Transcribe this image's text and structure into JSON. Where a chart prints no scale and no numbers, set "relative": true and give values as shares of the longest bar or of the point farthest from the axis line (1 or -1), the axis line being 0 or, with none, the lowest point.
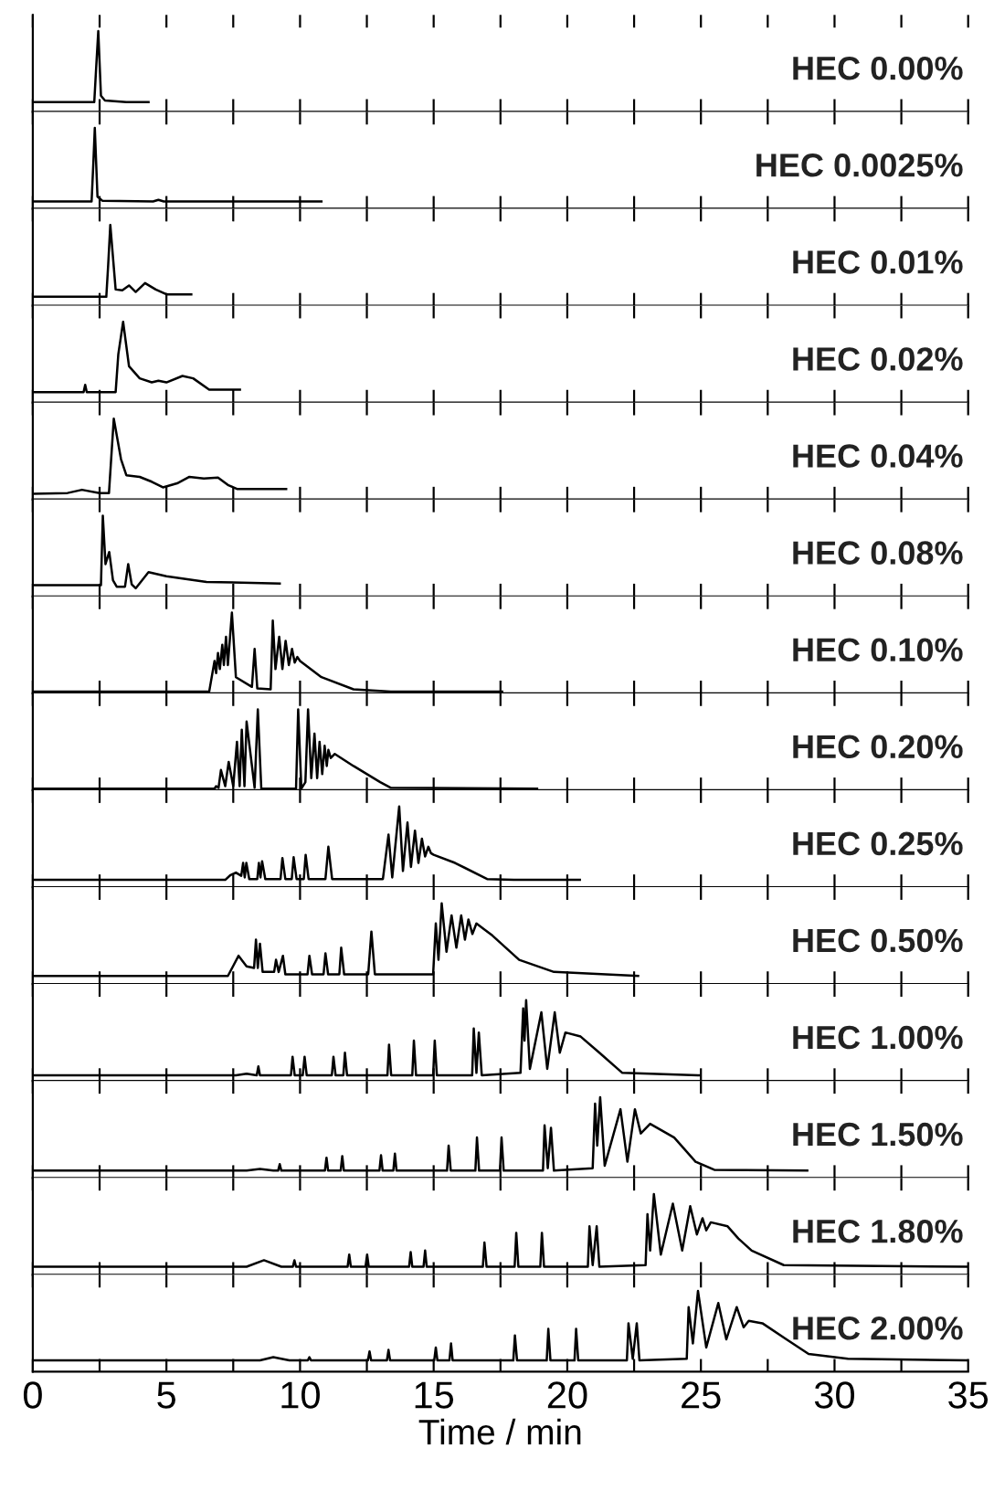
{
  "chart_data": [
    {
      "type": "line",
      "title": "HEC 0.00%",
      "relative": true,
      "color": "#000000",
      "xlim": [
        0,
        35
      ],
      "tick_labels": false,
      "x": [
        0,
        2.3,
        2.38,
        2.45,
        2.55,
        2.7,
        3.5,
        4.33
      ],
      "values": [
        0.12,
        0.12,
        0.6,
        1,
        0.2,
        0.14,
        0.12,
        0.12
      ]
    },
    {
      "type": "line",
      "title": "HEC 0.0025%",
      "relative": true,
      "color": "#000000",
      "xlim": [
        0,
        35
      ],
      "tick_labels": false,
      "x": [
        0,
        2.2,
        2.27,
        2.32,
        2.42,
        2.6,
        4.5,
        4.7,
        4.9,
        10.8
      ],
      "values": [
        0.09,
        0.09,
        0.6,
        1,
        0.15,
        0.1,
        0.09,
        0.11,
        0.09,
        0.09
      ]
    },
    {
      "type": "line",
      "title": "HEC 0.01%",
      "relative": true,
      "color": "#000000",
      "xlim": [
        0,
        35
      ],
      "tick_labels": false,
      "x": [
        0,
        2.75,
        2.82,
        2.9,
        3.1,
        3.35,
        3.6,
        3.85,
        4.2,
        4.6,
        5.0,
        5.93
      ],
      "values": [
        0.11,
        0.11,
        0.5,
        1,
        0.2,
        0.19,
        0.25,
        0.17,
        0.28,
        0.2,
        0.14,
        0.14
      ]
    },
    {
      "type": "line",
      "title": "HEC 0.02%",
      "relative": true,
      "color": "#000000",
      "xlim": [
        0,
        35
      ],
      "tick_labels": false,
      "x": [
        0,
        1.9,
        1.96,
        2.02,
        3.1,
        3.2,
        3.38,
        3.6,
        4.0,
        4.45,
        4.7,
        5.0,
        5.6,
        6.0,
        6.6,
        7.75
      ],
      "values": [
        0.13,
        0.13,
        0.22,
        0.13,
        0.13,
        0.6,
        1,
        0.45,
        0.3,
        0.25,
        0.27,
        0.25,
        0.33,
        0.3,
        0.16,
        0.16
      ]
    },
    {
      "type": "line",
      "title": "HEC 0.04%",
      "relative": true,
      "color": "#000000",
      "xlim": [
        0,
        35
      ],
      "tick_labels": false,
      "x": [
        0,
        1.3,
        1.84,
        2.5,
        2.85,
        3.03,
        3.3,
        3.5,
        4.0,
        4.45,
        4.87,
        5.4,
        5.86,
        6.4,
        6.93,
        7.3,
        7.64,
        9.48
      ],
      "values": [
        0.07,
        0.08,
        0.12,
        0.08,
        0.08,
        1,
        0.5,
        0.3,
        0.28,
        0.22,
        0.15,
        0.2,
        0.28,
        0.26,
        0.27,
        0.18,
        0.13,
        0.13
      ]
    },
    {
      "type": "line",
      "title": "HEC 0.08%",
      "relative": true,
      "color": "#000000",
      "xlim": [
        0,
        35
      ],
      "tick_labels": false,
      "x": [
        0,
        2.55,
        2.62,
        2.72,
        2.86,
        3.0,
        3.14,
        3.45,
        3.57,
        3.7,
        3.85,
        4.33,
        5.0,
        6.5,
        9.24
      ],
      "values": [
        0.14,
        0.14,
        1,
        0.4,
        0.55,
        0.2,
        0.12,
        0.12,
        0.4,
        0.15,
        0.1,
        0.3,
        0.25,
        0.18,
        0.16
      ]
    },
    {
      "type": "line",
      "title": "HEC 0.10%",
      "relative": true,
      "color": "#000000",
      "xlim": [
        0,
        35
      ],
      "tick_labels": false,
      "x": [
        0,
        6.6,
        6.8,
        6.86,
        6.93,
        7.0,
        7.09,
        7.15,
        7.23,
        7.3,
        7.45,
        7.6,
        8.2,
        8.3,
        8.4,
        8.9,
        8.98,
        9.08,
        9.22,
        9.34,
        9.46,
        9.58,
        9.7,
        9.8,
        9.9,
        10.0,
        10.8,
        12.0,
        13.4,
        17.56
      ],
      "values": [
        0.02,
        0.02,
        0.4,
        0.25,
        0.5,
        0.3,
        0.6,
        0.35,
        0.7,
        0.35,
        1,
        0.2,
        0.08,
        0.55,
        0.06,
        0.05,
        0.9,
        0.3,
        0.7,
        0.3,
        0.65,
        0.35,
        0.55,
        0.38,
        0.45,
        0.4,
        0.2,
        0.05,
        0.02,
        0.02
      ]
    },
    {
      "type": "line",
      "title": "HEC 0.20%",
      "relative": true,
      "color": "#000000",
      "xlim": [
        0,
        35
      ],
      "tick_labels": false,
      "x": [
        0,
        6.8,
        6.86,
        6.95,
        7.04,
        7.2,
        7.33,
        7.5,
        7.64,
        7.74,
        7.82,
        7.92,
        8.0,
        8.3,
        8.42,
        8.55,
        9.85,
        9.93,
        10.05,
        10.2,
        10.3,
        10.42,
        10.54,
        10.64,
        10.73,
        10.83,
        10.92,
        11.0,
        11.06,
        11.15,
        11.3,
        12.0,
        13.0,
        13.4,
        18.87
      ],
      "values": [
        0.02,
        0.02,
        0.05,
        0.03,
        0.25,
        0.05,
        0.35,
        0.05,
        0.6,
        0.05,
        0.75,
        0.05,
        0.85,
        0.03,
        1,
        0.02,
        0.02,
        1,
        0.02,
        0.1,
        1,
        0.15,
        0.7,
        0.15,
        0.6,
        0.2,
        0.55,
        0.3,
        0.5,
        0.4,
        0.45,
        0.3,
        0.1,
        0.03,
        0.02
      ]
    },
    {
      "type": "line",
      "title": "HEC 0.25%",
      "relative": true,
      "color": "#000000",
      "xlim": [
        0,
        35
      ],
      "tick_labels": false,
      "x": [
        0,
        7.2,
        7.4,
        7.6,
        7.8,
        7.87,
        7.93,
        7.99,
        8.1,
        8.4,
        8.46,
        8.52,
        8.58,
        8.7,
        9.27,
        9.34,
        9.45,
        9.69,
        9.76,
        9.87,
        10.14,
        10.21,
        10.32,
        10.95,
        11.06,
        11.2,
        13.1,
        13.31,
        13.45,
        13.71,
        13.85,
        14.02,
        14.15,
        14.3,
        14.43,
        14.56,
        14.68,
        14.8,
        14.9,
        15.0,
        15.8,
        17.0,
        18.0,
        20.47
      ],
      "values": [
        0.09,
        0.09,
        0.15,
        0.18,
        0.14,
        0.3,
        0.12,
        0.3,
        0.1,
        0.1,
        0.3,
        0.12,
        0.32,
        0.1,
        0.1,
        0.36,
        0.1,
        0.1,
        0.37,
        0.1,
        0.1,
        0.4,
        0.1,
        0.1,
        0.5,
        0.1,
        0.1,
        0.65,
        0.12,
        1,
        0.2,
        0.8,
        0.25,
        0.7,
        0.3,
        0.6,
        0.38,
        0.5,
        0.42,
        0.4,
        0.3,
        0.1,
        0.09,
        0.09
      ]
    },
    {
      "type": "line",
      "title": "HEC 0.50%",
      "relative": true,
      "color": "#000000",
      "xlim": [
        0,
        35
      ],
      "tick_labels": false,
      "x": [
        0,
        7.3,
        7.7,
        8.0,
        8.28,
        8.35,
        8.42,
        8.5,
        8.6,
        9.03,
        9.1,
        9.2,
        9.36,
        9.45,
        10.28,
        10.35,
        10.45,
        10.88,
        10.95,
        11.05,
        11.47,
        11.54,
        11.65,
        12.55,
        12.67,
        12.8,
        14.98,
        15.08,
        15.18,
        15.3,
        15.48,
        15.67,
        15.85,
        16.03,
        16.17,
        16.3,
        16.45,
        16.6,
        17.2,
        18.2,
        19.5,
        22.65
      ],
      "values": [
        0.1,
        0.1,
        0.35,
        0.22,
        0.2,
        0.55,
        0.2,
        0.5,
        0.15,
        0.15,
        0.3,
        0.15,
        0.35,
        0.12,
        0.12,
        0.35,
        0.12,
        0.12,
        0.38,
        0.12,
        0.12,
        0.45,
        0.12,
        0.12,
        0.65,
        0.12,
        0.12,
        0.75,
        0.3,
        1,
        0.4,
        0.85,
        0.45,
        0.85,
        0.55,
        0.8,
        0.62,
        0.75,
        0.6,
        0.3,
        0.15,
        0.1
      ]
    },
    {
      "type": "line",
      "title": "HEC 1.00%",
      "relative": true,
      "color": "#000000",
      "xlim": [
        0,
        35
      ],
      "tick_labels": false,
      "x": [
        0,
        7.6,
        8.0,
        8.38,
        8.44,
        8.5,
        9.66,
        9.72,
        9.8,
        10.1,
        10.17,
        10.25,
        11.19,
        11.25,
        11.33,
        11.62,
        11.68,
        11.76,
        13.27,
        13.33,
        13.41,
        14.2,
        14.26,
        14.34,
        14.98,
        15.04,
        15.12,
        16.44,
        16.5,
        16.6,
        16.69,
        16.8,
        18.25,
        18.35,
        18.4,
        18.46,
        18.6,
        19.03,
        19.25,
        19.53,
        19.72,
        19.93,
        20.5,
        21.2,
        22.06,
        24.96
      ],
      "values": [
        0.07,
        0.07,
        0.09,
        0.07,
        0.18,
        0.07,
        0.07,
        0.3,
        0.07,
        0.07,
        0.3,
        0.07,
        0.07,
        0.3,
        0.07,
        0.07,
        0.35,
        0.07,
        0.07,
        0.45,
        0.07,
        0.07,
        0.5,
        0.07,
        0.07,
        0.5,
        0.07,
        0.07,
        0.65,
        0.1,
        0.6,
        0.07,
        0.1,
        0.9,
        0.5,
        1,
        0.15,
        0.85,
        0.15,
        0.85,
        0.35,
        0.6,
        0.55,
        0.35,
        0.1,
        0.07
      ]
    },
    {
      "type": "line",
      "title": "HEC 1.50%",
      "relative": true,
      "color": "#000000",
      "xlim": [
        0,
        35
      ],
      "tick_labels": false,
      "x": [
        0,
        8.0,
        8.5,
        9.0,
        9.18,
        9.24,
        9.3,
        10.93,
        10.99,
        11.05,
        11.52,
        11.58,
        11.64,
        12.97,
        13.03,
        13.09,
        13.49,
        13.55,
        13.61,
        15.5,
        15.56,
        15.64,
        16.56,
        16.62,
        16.7,
        17.48,
        17.54,
        17.62,
        19.09,
        19.15,
        19.27,
        19.39,
        19.5,
        20.95,
        21.04,
        21.12,
        21.23,
        21.4,
        21.99,
        22.25,
        22.53,
        22.75,
        23.1,
        24.0,
        24.8,
        25.5,
        28.98
      ],
      "values": [
        0.09,
        0.09,
        0.11,
        0.09,
        0.09,
        0.17,
        0.09,
        0.09,
        0.25,
        0.09,
        0.09,
        0.27,
        0.09,
        0.09,
        0.28,
        0.09,
        0.09,
        0.3,
        0.09,
        0.09,
        0.4,
        0.09,
        0.09,
        0.5,
        0.09,
        0.09,
        0.5,
        0.09,
        0.09,
        0.65,
        0.12,
        0.62,
        0.09,
        0.12,
        0.92,
        0.4,
        1,
        0.15,
        0.85,
        0.2,
        0.85,
        0.55,
        0.67,
        0.5,
        0.2,
        0.1,
        0.09
      ]
    },
    {
      "type": "line",
      "title": "HEC 1.80%",
      "relative": true,
      "color": "#000000",
      "xlim": [
        0,
        35
      ],
      "tick_labels": false,
      "x": [
        0,
        8.0,
        8.65,
        9.3,
        9.73,
        9.79,
        9.85,
        11.78,
        11.84,
        11.9,
        12.45,
        12.51,
        12.57,
        14.08,
        14.14,
        14.2,
        14.62,
        14.68,
        14.74,
        16.84,
        16.9,
        16.98,
        18.03,
        18.09,
        18.17,
        18.99,
        19.05,
        19.13,
        20.77,
        20.83,
        20.95,
        21.1,
        21.2,
        22.93,
        23.0,
        23.1,
        23.24,
        23.5,
        23.95,
        24.3,
        24.6,
        24.85,
        25.06,
        25.2,
        25.37,
        26.0,
        26.4,
        26.9,
        28.1,
        35
      ],
      "values": [
        0.1,
        0.1,
        0.18,
        0.1,
        0.1,
        0.18,
        0.1,
        0.1,
        0.25,
        0.1,
        0.1,
        0.25,
        0.1,
        0.1,
        0.28,
        0.1,
        0.1,
        0.3,
        0.1,
        0.1,
        0.4,
        0.1,
        0.1,
        0.52,
        0.1,
        0.1,
        0.52,
        0.1,
        0.1,
        0.6,
        0.12,
        0.6,
        0.1,
        0.12,
        0.75,
        0.3,
        1,
        0.25,
        0.88,
        0.3,
        0.85,
        0.5,
        0.7,
        0.55,
        0.65,
        0.6,
        0.45,
        0.3,
        0.12,
        0.1
      ]
    },
    {
      "type": "line",
      "title": "HEC 2.00%",
      "relative": true,
      "color": "#000000",
      "xlim": [
        0,
        35
      ],
      "xticks": [
        0,
        {
          "value": 2.5,
          "label": null
        },
        5,
        {
          "value": 7.5,
          "label": null
        },
        10,
        {
          "value": 12.5,
          "label": null
        },
        15,
        {
          "value": 17.5,
          "label": null
        },
        20,
        {
          "value": 22.5,
          "label": null
        },
        25,
        {
          "value": 27.5,
          "label": null
        },
        30,
        {
          "value": 32.5,
          "label": null
        },
        35
      ],
      "tick_labels": "x",
      "xlabel": "Time / min",
      "x": [
        0,
        8.5,
        9.0,
        9.6,
        10.29,
        10.35,
        10.41,
        12.54,
        12.6,
        12.66,
        13.25,
        13.31,
        13.37,
        15.02,
        15.08,
        15.14,
        15.59,
        15.65,
        15.71,
        17.98,
        18.04,
        18.12,
        19.23,
        19.29,
        19.37,
        20.27,
        20.33,
        20.41,
        22.23,
        22.29,
        22.45,
        22.6,
        22.7,
        24.47,
        24.54,
        24.7,
        24.89,
        25.2,
        25.65,
        25.95,
        26.34,
        26.6,
        26.79,
        27.3,
        28.2,
        29.03,
        30.5,
        35
      ],
      "values": [
        0.14,
        0.14,
        0.18,
        0.14,
        0.14,
        0.18,
        0.14,
        0.14,
        0.25,
        0.14,
        0.14,
        0.27,
        0.14,
        0.14,
        0.3,
        0.14,
        0.14,
        0.35,
        0.14,
        0.14,
        0.45,
        0.14,
        0.14,
        0.53,
        0.14,
        0.14,
        0.53,
        0.14,
        0.14,
        0.6,
        0.16,
        0.6,
        0.14,
        0.16,
        0.8,
        0.35,
        1,
        0.3,
        0.85,
        0.4,
        0.8,
        0.55,
        0.63,
        0.6,
        0.4,
        0.22,
        0.16,
        0.14
      ]
    }
  ]
}
